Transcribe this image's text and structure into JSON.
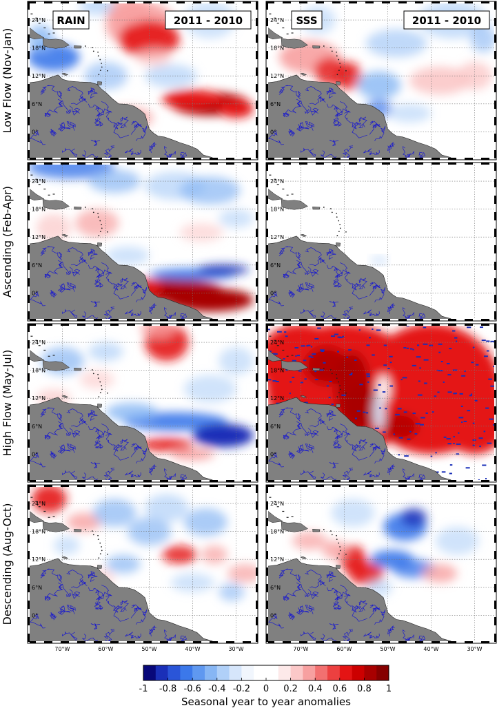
{
  "figure": {
    "columns": [
      {
        "variable": "RAIN",
        "period": "2011 - 2010"
      },
      {
        "variable": "SSS",
        "period": "2011 - 2010"
      }
    ],
    "rows": [
      {
        "label": "Low Flow (Nov-Jan)"
      },
      {
        "label": "Ascending (Feb-Apr)"
      },
      {
        "label": "High Flow (May-Jul)"
      },
      {
        "label": "Descending (Aug-Oct)"
      }
    ],
    "lon_ticks": [
      "70°W",
      "60°W",
      "50°W",
      "40°W",
      "30°W"
    ],
    "lat_ticks": [
      "24°N",
      "18°N",
      "12°N",
      "6°N",
      "0°"
    ],
    "colorbar": {
      "title": "Seasonal year to year anomalies",
      "ticks": [
        "-1",
        "-0.8",
        "-0.6",
        "-0.4",
        "-0.2",
        "0",
        "0.2",
        "0.4",
        "0.6",
        "0.8",
        "1"
      ],
      "range": [
        -1,
        1
      ],
      "colors": [
        "#08087a",
        "#1a2fb8",
        "#2a55d8",
        "#3b78ea",
        "#5f98f0",
        "#87b6f4",
        "#b0d0f8",
        "#d6e6fb",
        "#f1f6fd",
        "#ffffff",
        "#ffffff",
        "#fde9e9",
        "#fbc8c8",
        "#f7a0a0",
        "#f27070",
        "#ec4040",
        "#e41414",
        "#cc0000",
        "#a80000",
        "#860000"
      ]
    },
    "land_color": "#808080",
    "river_color": "#1a1acc",
    "map_extent": {
      "lon": [
        -78,
        -25
      ],
      "lat": [
        -6,
        28
      ]
    }
  }
}
